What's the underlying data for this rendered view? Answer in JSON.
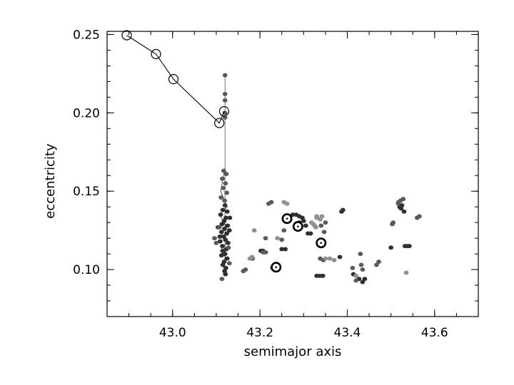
{
  "chart_data": {
    "type": "scatter",
    "title": "",
    "xlabel": "semimajor axis",
    "ylabel": "eccentricity",
    "xlim": [
      42.85,
      43.7
    ],
    "ylim": [
      0.07,
      0.252
    ],
    "xticks": [
      {
        "value": 43.0,
        "label": "43.0"
      },
      {
        "value": 43.2,
        "label": "43.2"
      },
      {
        "value": 43.4,
        "label": "43.4"
      },
      {
        "value": 43.6,
        "label": "43.6"
      }
    ],
    "yticks": [
      {
        "value": 0.25,
        "label": "0.25"
      },
      {
        "value": 0.2,
        "label": "0.20"
      },
      {
        "value": 0.15,
        "label": "0.15"
      },
      {
        "value": 0.1,
        "label": "0.10"
      }
    ],
    "x_minor_step": 0.05,
    "y_minor_step": 0.01,
    "grid": false,
    "legend": "none",
    "colors": {
      "dark": "#303030",
      "mid": "#5a5a5a",
      "light": "#909090",
      "line": "#000000"
    },
    "open_circle_track": {
      "x": [
        42.895,
        42.962,
        43.002,
        43.107,
        43.118
      ],
      "y": [
        0.2495,
        0.2375,
        0.2215,
        0.1935,
        0.201
      ]
    },
    "vertical_line": {
      "x": 43.12,
      "y_top": 0.224,
      "y_bottom": 0.103
    },
    "track_line": {
      "x": [
        43.12,
        43.11,
        43.125,
        43.108,
        43.122,
        43.112,
        43.126,
        43.109,
        43.121,
        43.113,
        43.124
      ],
      "y": [
        0.165,
        0.15,
        0.14,
        0.135,
        0.128,
        0.122,
        0.118,
        0.112,
        0.108,
        0.103,
        0.098
      ]
    },
    "scatter_series": [
      {
        "shade": "dark",
        "points": [
          [
            43.12,
            0.141
          ],
          [
            43.115,
            0.138
          ],
          [
            43.125,
            0.137
          ],
          [
            43.11,
            0.135
          ],
          [
            43.122,
            0.133
          ],
          [
            43.118,
            0.131
          ],
          [
            43.113,
            0.129
          ],
          [
            43.126,
            0.128
          ],
          [
            43.119,
            0.126
          ],
          [
            43.112,
            0.124
          ],
          [
            43.124,
            0.123
          ],
          [
            43.117,
            0.121
          ],
          [
            43.121,
            0.119
          ],
          [
            43.109,
            0.118
          ],
          [
            43.127,
            0.117
          ],
          [
            43.114,
            0.115
          ],
          [
            43.123,
            0.113
          ],
          [
            43.116,
            0.112
          ],
          [
            43.12,
            0.11
          ],
          [
            43.112,
            0.109
          ],
          [
            43.125,
            0.107
          ],
          [
            43.118,
            0.105
          ],
          [
            43.115,
            0.103
          ],
          [
            43.122,
            0.101
          ],
          [
            43.119,
            0.099
          ],
          [
            43.121,
            0.097
          ],
          [
            43.108,
            0.121
          ],
          [
            43.13,
            0.125
          ],
          [
            43.104,
            0.127
          ],
          [
            43.131,
            0.133
          ],
          [
            43.275,
            0.135
          ],
          [
            43.283,
            0.135
          ],
          [
            43.29,
            0.134
          ],
          [
            43.297,
            0.133
          ],
          [
            43.3,
            0.131
          ],
          [
            43.29,
            0.13
          ],
          [
            43.305,
            0.128
          ],
          [
            43.31,
            0.123
          ],
          [
            43.316,
            0.123
          ],
          [
            43.235,
            0.101
          ],
          [
            43.24,
            0.102
          ],
          [
            43.33,
            0.096
          ],
          [
            43.337,
            0.096
          ],
          [
            43.344,
            0.096
          ],
          [
            43.25,
            0.113
          ],
          [
            43.258,
            0.113
          ],
          [
            43.202,
            0.112
          ],
          [
            43.207,
            0.112
          ],
          [
            43.39,
            0.138
          ],
          [
            43.387,
            0.137
          ],
          [
            43.383,
            0.108
          ],
          [
            43.427,
            0.094
          ],
          [
            43.435,
            0.092
          ],
          [
            43.44,
            0.094
          ],
          [
            43.414,
            0.097
          ],
          [
            43.523,
            0.139
          ],
          [
            43.52,
            0.14
          ],
          [
            43.53,
            0.137
          ],
          [
            43.525,
            0.141
          ],
          [
            43.532,
            0.115
          ],
          [
            43.537,
            0.115
          ],
          [
            43.542,
            0.115
          ],
          [
            43.5,
            0.114
          ]
        ]
      },
      {
        "shade": "mid",
        "points": [
          [
            43.12,
            0.224
          ],
          [
            43.12,
            0.212
          ],
          [
            43.12,
            0.208
          ],
          [
            43.12,
            0.2
          ],
          [
            43.12,
            0.197
          ],
          [
            43.117,
            0.163
          ],
          [
            43.123,
            0.161
          ],
          [
            43.114,
            0.158
          ],
          [
            43.121,
            0.155
          ],
          [
            43.116,
            0.152
          ],
          [
            43.124,
            0.149
          ],
          [
            43.111,
            0.146
          ],
          [
            43.119,
            0.144
          ],
          [
            43.107,
            0.127
          ],
          [
            43.096,
            0.12
          ],
          [
            43.1,
            0.117
          ],
          [
            43.128,
            0.114
          ],
          [
            43.13,
            0.104
          ],
          [
            43.113,
            0.094
          ],
          [
            43.22,
            0.142
          ],
          [
            43.226,
            0.143
          ],
          [
            43.213,
            0.12
          ],
          [
            43.213,
            0.111
          ],
          [
            43.207,
            0.111
          ],
          [
            43.255,
            0.125
          ],
          [
            43.25,
            0.119
          ],
          [
            43.162,
            0.099
          ],
          [
            43.167,
            0.1
          ],
          [
            43.183,
            0.107
          ],
          [
            43.34,
            0.128
          ],
          [
            43.347,
            0.124
          ],
          [
            43.35,
            0.13
          ],
          [
            43.338,
            0.107
          ],
          [
            43.345,
            0.106
          ],
          [
            43.43,
            0.11
          ],
          [
            43.432,
            0.103
          ],
          [
            43.435,
            0.1
          ],
          [
            43.412,
            0.101
          ],
          [
            43.467,
            0.103
          ],
          [
            43.472,
            0.105
          ],
          [
            43.42,
            0.093
          ],
          [
            43.505,
            0.13
          ],
          [
            43.503,
            0.129
          ],
          [
            43.517,
            0.143
          ],
          [
            43.522,
            0.144
          ],
          [
            43.528,
            0.145
          ],
          [
            43.517,
            0.142
          ],
          [
            43.56,
            0.133
          ],
          [
            43.565,
            0.134
          ]
        ]
      },
      {
        "shade": "light",
        "points": [
          [
            43.33,
            0.133
          ],
          [
            43.322,
            0.129
          ],
          [
            43.318,
            0.13
          ],
          [
            43.325,
            0.128
          ],
          [
            43.33,
            0.134
          ],
          [
            43.342,
            0.134
          ],
          [
            43.338,
            0.132
          ],
          [
            43.328,
            0.127
          ],
          [
            43.255,
            0.143
          ],
          [
            43.262,
            0.142
          ],
          [
            43.24,
            0.12
          ],
          [
            43.187,
            0.125
          ],
          [
            43.177,
            0.107
          ],
          [
            43.182,
            0.108
          ],
          [
            43.228,
            0.101
          ],
          [
            43.35,
            0.107
          ],
          [
            43.36,
            0.107
          ],
          [
            43.37,
            0.106
          ],
          [
            43.42,
            0.096
          ],
          [
            43.535,
            0.098
          ]
        ]
      }
    ],
    "target_markers": {
      "x": [
        43.262,
        43.287,
        43.34,
        43.237
      ],
      "y": [
        0.1325,
        0.1275,
        0.117,
        0.1015
      ]
    }
  }
}
